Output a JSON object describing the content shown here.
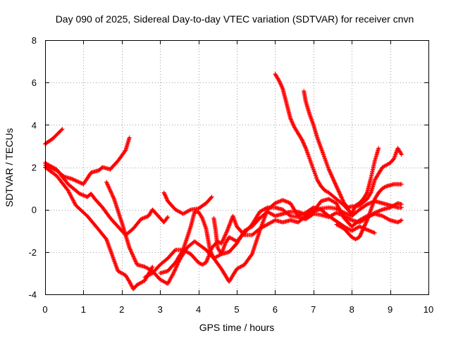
{
  "chart_data": {
    "type": "scatter",
    "title": "Day 090 of 2025, Sidereal Day-to-day VTEC variation (SDTVAR) for receiver cnvn",
    "xlabel": "GPS time / hours",
    "ylabel": "SDTVAR / TECUs",
    "xlim": [
      0,
      10
    ],
    "ylim": [
      -4,
      8
    ],
    "xticks": [
      "0",
      "1",
      "2",
      "3",
      "4",
      "5",
      "6",
      "7",
      "8",
      "9",
      "10"
    ],
    "yticks": [
      "-4",
      "-2",
      "0",
      "2",
      "4",
      "6",
      "8"
    ],
    "grid": true,
    "marker": "plus",
    "color": "#ff0000",
    "series": [
      {
        "points": [
          [
            0.0,
            3.1
          ],
          [
            0.2,
            3.35
          ],
          [
            0.45,
            3.8
          ]
        ]
      },
      {
        "points": [
          [
            0.0,
            2.1
          ],
          [
            0.3,
            1.85
          ],
          [
            0.5,
            1.55
          ],
          [
            0.7,
            1.45
          ],
          [
            1.0,
            1.2
          ],
          [
            1.2,
            1.75
          ],
          [
            1.4,
            1.85
          ],
          [
            1.5,
            2.0
          ],
          [
            1.7,
            1.9
          ],
          [
            1.9,
            2.3
          ],
          [
            2.1,
            2.8
          ],
          [
            2.2,
            3.4
          ]
        ]
      },
      {
        "points": [
          [
            0.0,
            2.2
          ],
          [
            0.3,
            1.9
          ],
          [
            0.6,
            1.2
          ],
          [
            0.9,
            0.75
          ],
          [
            1.1,
            0.6
          ],
          [
            1.2,
            0.75
          ],
          [
            1.3,
            0.5
          ],
          [
            1.5,
            0.1
          ],
          [
            1.7,
            -0.4
          ],
          [
            1.9,
            -0.8
          ],
          [
            2.1,
            -1.2
          ],
          [
            2.3,
            -0.9
          ],
          [
            2.5,
            -0.45
          ],
          [
            2.7,
            -0.3
          ],
          [
            2.8,
            -0.0
          ],
          [
            2.95,
            -0.3
          ],
          [
            3.1,
            -0.6
          ],
          [
            3.2,
            -0.35
          ]
        ]
      },
      {
        "points": [
          [
            0.0,
            2.0
          ],
          [
            0.3,
            1.6
          ],
          [
            0.6,
            0.9
          ],
          [
            0.8,
            0.2
          ],
          [
            1.1,
            -0.3
          ],
          [
            1.4,
            -0.95
          ],
          [
            1.6,
            -1.4
          ],
          [
            1.8,
            -2.4
          ],
          [
            1.9,
            -2.9
          ],
          [
            2.0,
            -3.0
          ],
          [
            2.1,
            -3.1
          ],
          [
            2.2,
            -3.4
          ],
          [
            2.3,
            -3.75
          ],
          [
            2.4,
            -3.55
          ],
          [
            2.5,
            -3.45
          ],
          [
            2.6,
            -3.35
          ],
          [
            2.8,
            -2.7
          ]
        ]
      },
      {
        "points": [
          [
            1.6,
            1.3
          ],
          [
            1.8,
            0.5
          ],
          [
            2.0,
            -0.6
          ],
          [
            2.2,
            -1.8
          ],
          [
            2.4,
            -2.6
          ],
          [
            2.6,
            -2.7
          ],
          [
            2.8,
            -2.9
          ],
          [
            3.0,
            -3.3
          ],
          [
            3.2,
            -3.5
          ],
          [
            3.35,
            -3.0
          ],
          [
            3.5,
            -2.4
          ],
          [
            3.7,
            -1.8
          ],
          [
            3.9,
            -1.5
          ],
          [
            4.2,
            -1.9
          ],
          [
            4.4,
            -2.3
          ],
          [
            4.6,
            -2.8
          ],
          [
            4.8,
            -3.4
          ],
          [
            5.0,
            -2.8
          ],
          [
            5.2,
            -2.6
          ],
          [
            5.4,
            -2.1
          ],
          [
            5.6,
            -1.0
          ],
          [
            5.8,
            0.0
          ],
          [
            6.0,
            0.3
          ],
          [
            6.2,
            0.45
          ],
          [
            6.4,
            0.3
          ],
          [
            6.6,
            -0.3
          ],
          [
            6.8,
            -0.15
          ],
          [
            7.0,
            0.1
          ],
          [
            7.2,
            0.0
          ],
          [
            7.4,
            -0.3
          ],
          [
            7.6,
            -0.55
          ],
          [
            7.8,
            -0.8
          ],
          [
            8.0,
            -1.0
          ],
          [
            8.2,
            -0.8
          ],
          [
            8.4,
            -0.95
          ],
          [
            8.6,
            -1.1
          ]
        ]
      },
      {
        "points": [
          [
            2.6,
            -3.2
          ],
          [
            2.8,
            -3.0
          ],
          [
            3.0,
            -2.6
          ],
          [
            3.2,
            -2.3
          ],
          [
            3.4,
            -1.9
          ],
          [
            3.6,
            -1.9
          ],
          [
            3.8,
            -2.1
          ],
          [
            4.0,
            -2.5
          ],
          [
            4.1,
            -2.6
          ],
          [
            4.2,
            -2.5
          ],
          [
            4.35,
            -1.8
          ],
          [
            4.5,
            -1.5
          ],
          [
            4.6,
            -1.6
          ],
          [
            4.75,
            -1.0
          ],
          [
            4.9,
            -0.3
          ],
          [
            5.0,
            -0.8
          ],
          [
            5.2,
            -1.2
          ],
          [
            5.4,
            -1.2
          ],
          [
            5.6,
            -0.9
          ],
          [
            5.8,
            -0.7
          ],
          [
            6.0,
            -0.5
          ],
          [
            6.2,
            -0.6
          ],
          [
            6.4,
            -0.5
          ],
          [
            6.6,
            -0.6
          ],
          [
            6.8,
            -0.3
          ],
          [
            7.0,
            -0.1
          ],
          [
            7.2,
            0.4
          ],
          [
            7.4,
            0.5
          ],
          [
            7.6,
            0.3
          ],
          [
            7.8,
            -0.4
          ],
          [
            8.0,
            -0.8
          ],
          [
            8.2,
            -0.5
          ],
          [
            8.4,
            -0.3
          ],
          [
            8.6,
            -0.2
          ],
          [
            8.8,
            -0.3
          ],
          [
            9.0,
            -0.5
          ],
          [
            9.2,
            -0.6
          ],
          [
            9.3,
            -0.5
          ]
        ]
      },
      {
        "points": [
          [
            3.1,
            0.8
          ],
          [
            3.2,
            0.4
          ],
          [
            3.4,
            0.0
          ],
          [
            3.6,
            -0.2
          ],
          [
            3.8,
            -0.0
          ],
          [
            4.0,
            0.05
          ],
          [
            4.2,
            0.3
          ],
          [
            4.35,
            0.6
          ]
        ]
      },
      {
        "points": [
          [
            3.0,
            -3.0
          ],
          [
            3.2,
            -2.9
          ],
          [
            3.4,
            -2.5
          ],
          [
            3.6,
            -1.9
          ],
          [
            3.8,
            -0.8
          ],
          [
            3.9,
            -0.1
          ],
          [
            4.0,
            -0.1
          ],
          [
            4.1,
            -0.4
          ],
          [
            4.2,
            -0.9
          ],
          [
            4.3,
            -1.9
          ],
          [
            4.4,
            -2.3
          ],
          [
            4.5,
            -2.2
          ],
          [
            4.6,
            -2.1
          ],
          [
            4.7,
            -1.6
          ],
          [
            4.8,
            -1.3
          ],
          [
            5.0,
            -1.5
          ],
          [
            5.2,
            -1.1
          ],
          [
            5.4,
            -0.7
          ],
          [
            5.6,
            -0.1
          ],
          [
            5.8,
            0.1
          ],
          [
            6.0,
            0.1
          ],
          [
            6.2,
            0.0
          ],
          [
            6.4,
            -0.3
          ],
          [
            6.6,
            -0.35
          ],
          [
            6.8,
            -0.45
          ],
          [
            7.0,
            -0.2
          ],
          [
            7.2,
            -0.25
          ],
          [
            7.4,
            -0.35
          ],
          [
            7.6,
            -0.15
          ],
          [
            7.8,
            -0.3
          ],
          [
            8.0,
            -0.5
          ],
          [
            8.2,
            -0.6
          ],
          [
            8.4,
            -0.4
          ],
          [
            8.6,
            -0.15
          ],
          [
            8.8,
            -0.0
          ],
          [
            9.0,
            0.1
          ],
          [
            9.2,
            0.3
          ],
          [
            9.3,
            0.25
          ]
        ]
      },
      {
        "points": [
          [
            4.4,
            -0.4
          ],
          [
            4.45,
            -1.0
          ],
          [
            4.5,
            -1.8
          ],
          [
            4.6,
            -2.1
          ],
          [
            4.8,
            -2.0
          ],
          [
            5.0,
            -1.6
          ],
          [
            5.2,
            -1.0
          ],
          [
            5.4,
            -0.8
          ],
          [
            5.6,
            -0.4
          ],
          [
            5.8,
            -0.1
          ],
          [
            6.0,
            -0.3
          ],
          [
            6.2,
            -0.2
          ],
          [
            6.4,
            -0.1
          ],
          [
            6.6,
            -0.1
          ],
          [
            6.8,
            -0.25
          ],
          [
            7.0,
            -0.1
          ],
          [
            7.2,
            0.05
          ],
          [
            7.4,
            0.1
          ],
          [
            7.6,
            0.05
          ],
          [
            7.8,
            -0.15
          ],
          [
            8.0,
            -0.3
          ],
          [
            8.2,
            0.0
          ],
          [
            8.4,
            0.25
          ],
          [
            8.6,
            0.4
          ],
          [
            8.8,
            0.3
          ],
          [
            9.0,
            0.2
          ],
          [
            9.2,
            0.1
          ],
          [
            9.3,
            0.1
          ]
        ]
      },
      {
        "points": [
          [
            6.0,
            6.4
          ],
          [
            6.1,
            6.1
          ],
          [
            6.2,
            5.7
          ],
          [
            6.3,
            5.0
          ],
          [
            6.4,
            4.3
          ],
          [
            6.5,
            3.9
          ],
          [
            6.6,
            3.6
          ],
          [
            6.7,
            3.3
          ],
          [
            6.8,
            2.9
          ],
          [
            6.9,
            2.4
          ],
          [
            7.0,
            1.9
          ],
          [
            7.1,
            1.4
          ],
          [
            7.2,
            1.1
          ],
          [
            7.3,
            0.9
          ],
          [
            7.4,
            0.8
          ],
          [
            7.6,
            0.5
          ],
          [
            7.8,
            0.2
          ],
          [
            7.9,
            0.0
          ],
          [
            8.0,
            -0.2
          ],
          [
            8.1,
            0.2
          ],
          [
            8.2,
            0.3
          ],
          [
            8.3,
            0.5
          ],
          [
            8.4,
            0.8
          ],
          [
            8.5,
            1.5
          ],
          [
            8.6,
            2.3
          ],
          [
            8.7,
            2.9
          ]
        ]
      },
      {
        "points": [
          [
            6.75,
            5.6
          ],
          [
            6.8,
            5.1
          ],
          [
            6.9,
            4.5
          ],
          [
            7.0,
            4.0
          ],
          [
            7.1,
            3.4
          ],
          [
            7.2,
            2.9
          ],
          [
            7.3,
            2.4
          ],
          [
            7.4,
            1.9
          ],
          [
            7.5,
            1.5
          ],
          [
            7.6,
            1.1
          ],
          [
            7.7,
            0.7
          ],
          [
            7.8,
            0.3
          ],
          [
            7.9,
            0.1
          ],
          [
            8.0,
            0.15
          ],
          [
            8.1,
            0.15
          ],
          [
            8.2,
            0.2
          ],
          [
            8.3,
            0.35
          ],
          [
            8.4,
            0.5
          ],
          [
            8.5,
            0.8
          ],
          [
            8.6,
            1.4
          ],
          [
            8.7,
            1.7
          ],
          [
            8.8,
            2.0
          ],
          [
            8.9,
            2.1
          ],
          [
            9.0,
            2.2
          ],
          [
            9.1,
            2.4
          ],
          [
            9.2,
            2.9
          ],
          [
            9.3,
            2.6
          ]
        ]
      },
      {
        "points": [
          [
            7.6,
            -0.7
          ],
          [
            7.8,
            -0.9
          ],
          [
            8.0,
            -1.3
          ],
          [
            8.1,
            -1.4
          ],
          [
            8.2,
            -1.3
          ],
          [
            8.3,
            -0.9
          ],
          [
            8.4,
            -0.5
          ],
          [
            8.5,
            0.0
          ],
          [
            8.6,
            0.5
          ],
          [
            8.7,
            0.8
          ],
          [
            8.8,
            1.0
          ],
          [
            8.9,
            1.1
          ],
          [
            9.0,
            1.15
          ],
          [
            9.1,
            1.2
          ],
          [
            9.2,
            1.2
          ],
          [
            9.3,
            1.2
          ]
        ]
      }
    ]
  }
}
